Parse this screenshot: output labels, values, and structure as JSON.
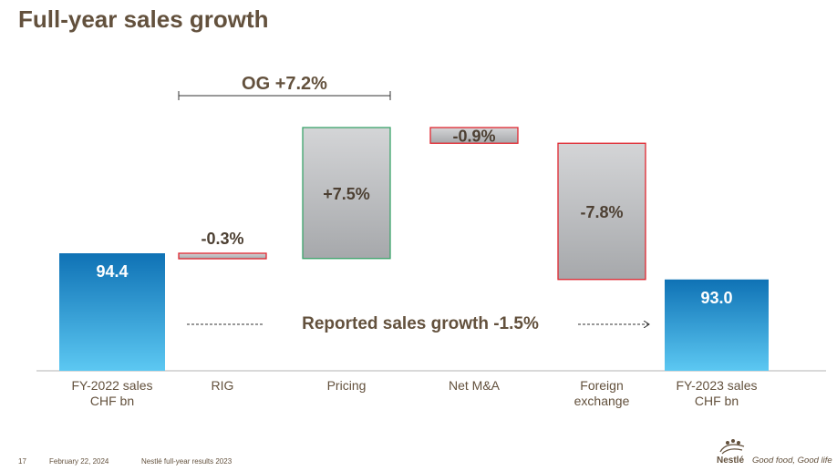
{
  "page": {
    "title": "Full-year sales growth"
  },
  "chart_data": {
    "type": "waterfall",
    "units": "CHF bn",
    "categories": [
      "FY-2022 sales\nCHF bn",
      "RIG",
      "Pricing",
      "Net M&A",
      "Foreign\nexchange",
      "FY-2023 sales\nCHF bn"
    ],
    "steps": [
      {
        "category": "FY-2022 sales CHF bn",
        "kind": "total",
        "value": 94.4,
        "label": "94.4"
      },
      {
        "category": "RIG",
        "kind": "change",
        "value": -0.3,
        "label": "-0.3%"
      },
      {
        "category": "Pricing",
        "kind": "change",
        "value": 7.5,
        "label": "+7.5%"
      },
      {
        "category": "Net M&A",
        "kind": "change",
        "value": -0.9,
        "label": "-0.9%"
      },
      {
        "category": "Foreign exchange",
        "kind": "change",
        "value": -7.8,
        "label": "-7.8%"
      },
      {
        "category": "FY-2023 sales CHF bn",
        "kind": "total",
        "value": 93.0,
        "label": "93.0"
      }
    ],
    "annotations": {
      "organic_growth": "OG +7.2%",
      "reported_growth": "Reported sales growth -1.5%"
    },
    "colors": {
      "total_top": "#0f72b5",
      "total_bottom": "#5cc8f2",
      "change_fill": "#b7b9bc",
      "positive_border": "#3aa36a",
      "negative_border": "#e0262f",
      "label_text": "#63513d",
      "bar_label_text": "#4d4033",
      "total_label_text": "#ffffff",
      "axis": "#b3b3b3"
    }
  },
  "footer": {
    "page_number": "17",
    "date": "February 22, 2024",
    "doc_title": "Nestlé full-year results 2023"
  },
  "logo": {
    "brand": "Nestlé",
    "tagline": "Good food, Good life",
    "icon": "nest-birds-icon"
  }
}
